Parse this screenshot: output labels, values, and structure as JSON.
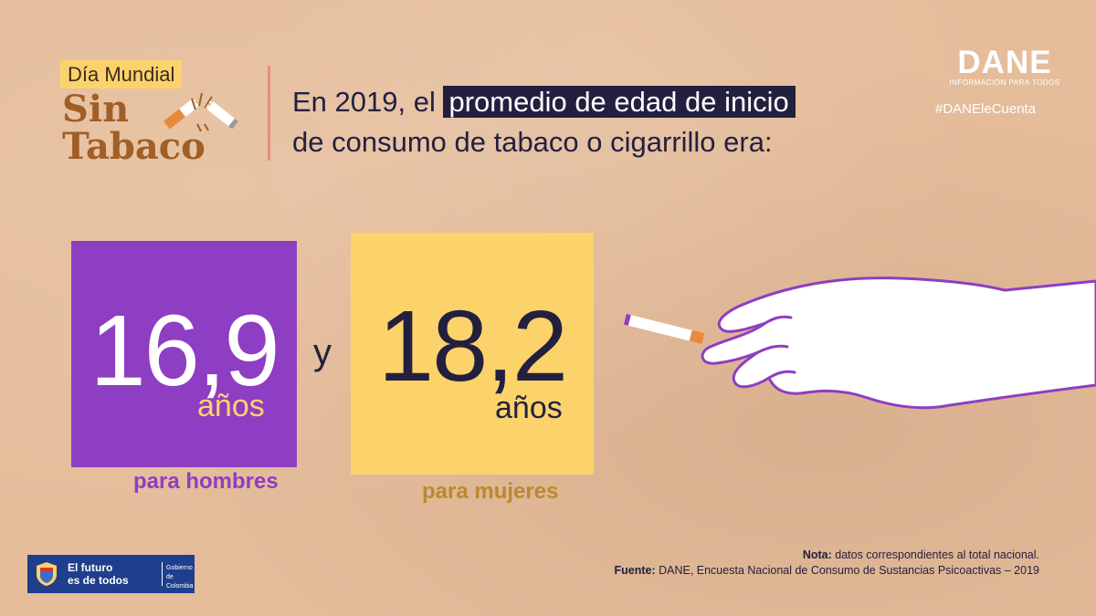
{
  "logo": {
    "top_line": "Día Mundial",
    "sin": "Sin",
    "tabaco": "Tabaco"
  },
  "headline": {
    "part1": "En 2019, el ",
    "highlight": "promedio de edad de inicio",
    "line2": "de consumo de tabaco o cigarrillo era:"
  },
  "brand": {
    "name": "DANE",
    "tagline": "INFORMACIÓN PARA TODOS",
    "hashtag": "#DANEleCuenta"
  },
  "stats": {
    "men": {
      "value": "16,9",
      "unit": "años",
      "label": "para hombres"
    },
    "conjunction": "y",
    "women": {
      "value": "18,2",
      "unit": "años",
      "label": "para mujeres"
    }
  },
  "government": {
    "line1": "El futuro",
    "line2": "es de todos",
    "right_line1": "Gobierno",
    "right_line2": "de Colombia"
  },
  "footer": {
    "note_label": "Nota:",
    "note_text": " datos correspondientes al total nacional.",
    "source_label": "Fuente:",
    "source_text": " DANE, Encuesta Nacional de Consumo de Sustancias Psicoactivas – 2019"
  },
  "colors": {
    "background": "#e5bd9b",
    "purple": "#8e3ec2",
    "yellow": "#fcd36a",
    "navy": "#23203f"
  }
}
